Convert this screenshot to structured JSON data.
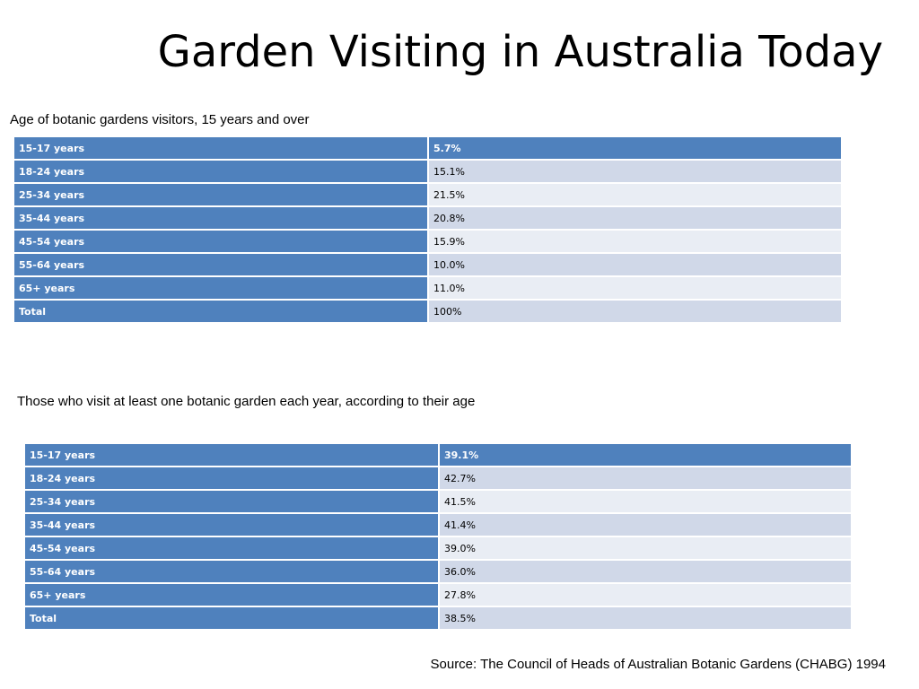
{
  "title": "Garden Visiting in Australia Today",
  "section_1": {
    "caption": "Age of botanic gardens visitors, 15 years and over",
    "rows": [
      {
        "age": "15-17 years",
        "value": "5.7%"
      },
      {
        "age": "18-24 years",
        "value": "15.1%"
      },
      {
        "age": "25-34 years",
        "value": "21.5%"
      },
      {
        "age": "35-44 years",
        "value": "20.8%"
      },
      {
        "age": "45-54 years",
        "value": "15.9%"
      },
      {
        "age": "55-64 years",
        "value": "10.0%"
      },
      {
        "age": "65+ years",
        "value": "11.0%"
      },
      {
        "age": "Total",
        "value": "100%"
      }
    ]
  },
  "section_2": {
    "caption": "Those who visit at least one botanic garden each year, according to their age",
    "rows": [
      {
        "age": "15-17 years",
        "value": "39.1%"
      },
      {
        "age": "18-24 years",
        "value": "42.7%"
      },
      {
        "age": "25-34 years",
        "value": "41.5%"
      },
      {
        "age": "35-44 years",
        "value": "41.4%"
      },
      {
        "age": "45-54 years",
        "value": "39.0%"
      },
      {
        "age": "55-64 years",
        "value": "36.0%"
      },
      {
        "age": "65+ years",
        "value": "27.8%"
      },
      {
        "age": "Total",
        "value": "38.5%"
      }
    ]
  },
  "source": "Source: The Council of Heads of Australian Botanic Gardens (CHABG) 1994",
  "colors": {
    "header_blue": "#4f81bd",
    "band_dark": "#d0d8e8",
    "band_light": "#e9edf4"
  }
}
